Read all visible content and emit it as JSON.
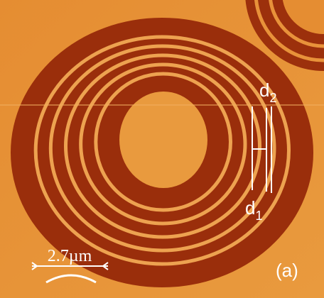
{
  "labels": {
    "d2": {
      "base": "d",
      "sub": "2"
    },
    "d1": {
      "base": "d",
      "sub": "1"
    },
    "scale": "2.7µm",
    "panel": "(a)"
  }
}
